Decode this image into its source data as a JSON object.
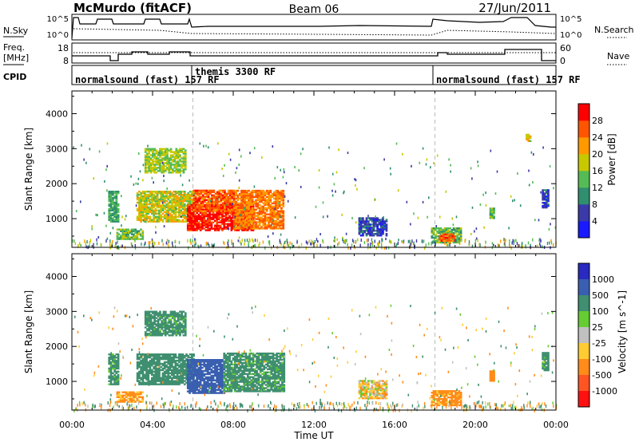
{
  "header": {
    "station": "McMurdo (fitACF)",
    "beam": "Beam 06",
    "date": "27/Jun/2011"
  },
  "top_panels": {
    "nsky_label": "N.Sky",
    "nsky_ticks": [
      "10^5",
      "10^0"
    ],
    "nsearch_label": "N.Search",
    "nsearch_ticks": [
      "10^5",
      "10^0"
    ],
    "freq_label": "Freq.",
    "freq_unit": "[MHz]",
    "freq_ticks": [
      "18",
      "8"
    ],
    "nave_label": "Nave",
    "nave_ticks": [
      "60",
      "0"
    ],
    "cpid_label": "CPID",
    "cpid_segments": [
      {
        "label": "normalsound (fast) 157 RF",
        "start_hour": 0
      },
      {
        "label": "themis 3300 RF",
        "start_hour": 6
      },
      {
        "label": "normalsound (fast) 157 RF",
        "start_hour": 18
      }
    ]
  },
  "chart_data": [
    {
      "type": "heatmap",
      "name": "power",
      "xlabel": "Time UT",
      "ylabel": "Slant Range [km]",
      "xlim": [
        0,
        24
      ],
      "ylim": [
        180,
        4650
      ],
      "x_ticks": [
        "00:00",
        "04:00",
        "08:00",
        "12:00",
        "16:00",
        "20:00",
        "00:00"
      ],
      "y_ticks": [
        1000,
        2000,
        3000,
        4000
      ],
      "colorbar_label": "Power [dB]",
      "colorbar_ticks": [
        4,
        8,
        12,
        16,
        20,
        24,
        28
      ],
      "colorbar_range": [
        0,
        32
      ],
      "colorbar_colors": [
        "#1a1aff",
        "#3a3aa8",
        "#2f8f6f",
        "#55bb55",
        "#c8c800",
        "#ff9900",
        "#ff5500",
        "#ff0000"
      ],
      "dashed_vlines_hour": [
        6,
        18
      ],
      "regions": [
        {
          "t0": 1.8,
          "t1": 2.3,
          "r0": 900,
          "r1": 1800,
          "level": 12
        },
        {
          "t0": 2.2,
          "t1": 3.5,
          "r0": 400,
          "r1": 700,
          "level": 14
        },
        {
          "t0": 3.2,
          "t1": 6.0,
          "r0": 900,
          "r1": 1800,
          "level": 18
        },
        {
          "t0": 3.6,
          "t1": 5.6,
          "r0": 2300,
          "r1": 3000,
          "level": 16
        },
        {
          "t0": 5.7,
          "t1": 9.0,
          "r0": 650,
          "r1": 1400,
          "level": 30
        },
        {
          "t0": 6.0,
          "t1": 8.0,
          "r0": 1200,
          "r1": 1800,
          "level": 26
        },
        {
          "t0": 8.0,
          "t1": 10.5,
          "r0": 700,
          "r1": 1800,
          "level": 24
        },
        {
          "t0": 14.2,
          "t1": 15.6,
          "r0": 500,
          "r1": 1000,
          "level": 6
        },
        {
          "t0": 17.8,
          "t1": 19.3,
          "r0": 300,
          "r1": 750,
          "level": 14
        },
        {
          "t0": 18.2,
          "t1": 19.0,
          "r0": 350,
          "r1": 550,
          "level": 26
        },
        {
          "t0": 20.7,
          "t1": 20.9,
          "r0": 1000,
          "r1": 1300,
          "level": 14
        },
        {
          "t0": 23.3,
          "t1": 23.6,
          "r0": 1300,
          "r1": 1800,
          "level": 6
        },
        {
          "t0": 22.5,
          "t1": 22.7,
          "r0": 3200,
          "r1": 3400,
          "level": 18
        }
      ]
    },
    {
      "type": "heatmap",
      "name": "velocity",
      "xlabel": "Time UT",
      "ylabel": "Slant Range [km]",
      "xlim": [
        0,
        24
      ],
      "ylim": [
        180,
        4650
      ],
      "x_ticks": [
        "00:00",
        "04:00",
        "08:00",
        "12:00",
        "16:00",
        "20:00",
        "00:00"
      ],
      "y_ticks": [
        1000,
        2000,
        3000,
        4000
      ],
      "colorbar_label": "Velocity [m s^-1]",
      "colorbar_ticks": [
        "1000",
        "500",
        "100",
        "25",
        "-25",
        "-100",
        "-500",
        "-1000"
      ],
      "colorbar_colors": [
        "#2a2ac0",
        "#3a5fb0",
        "#3f8f70",
        "#66cc33",
        "#c0c0c0",
        "#ffcc33",
        "#ff8c1a",
        "#ff5522",
        "#ff1111"
      ],
      "dashed_vlines_hour": [
        6,
        18
      ],
      "regions": [
        {
          "t0": 1.8,
          "t1": 2.3,
          "r0": 900,
          "r1": 1800,
          "level": 200
        },
        {
          "t0": 2.2,
          "t1": 3.5,
          "r0": 400,
          "r1": 700,
          "level": -150
        },
        {
          "t0": 3.2,
          "t1": 6.0,
          "r0": 900,
          "r1": 1800,
          "level": 300
        },
        {
          "t0": 5.7,
          "t1": 7.5,
          "r0": 650,
          "r1": 1600,
          "level": 700
        },
        {
          "t0": 7.5,
          "t1": 10.5,
          "r0": 700,
          "r1": 1800,
          "level": 200
        },
        {
          "t0": 3.6,
          "t1": 5.6,
          "r0": 2300,
          "r1": 3000,
          "level": 200
        },
        {
          "t0": 14.2,
          "t1": 15.6,
          "r0": 500,
          "r1": 1000,
          "level": -60
        },
        {
          "t0": 17.8,
          "t1": 19.3,
          "r0": 300,
          "r1": 750,
          "level": -200
        },
        {
          "t0": 20.7,
          "t1": 20.9,
          "r0": 1000,
          "r1": 1300,
          "level": -300
        },
        {
          "t0": 23.3,
          "t1": 23.6,
          "r0": 1300,
          "r1": 1800,
          "level": 200
        }
      ]
    }
  ]
}
